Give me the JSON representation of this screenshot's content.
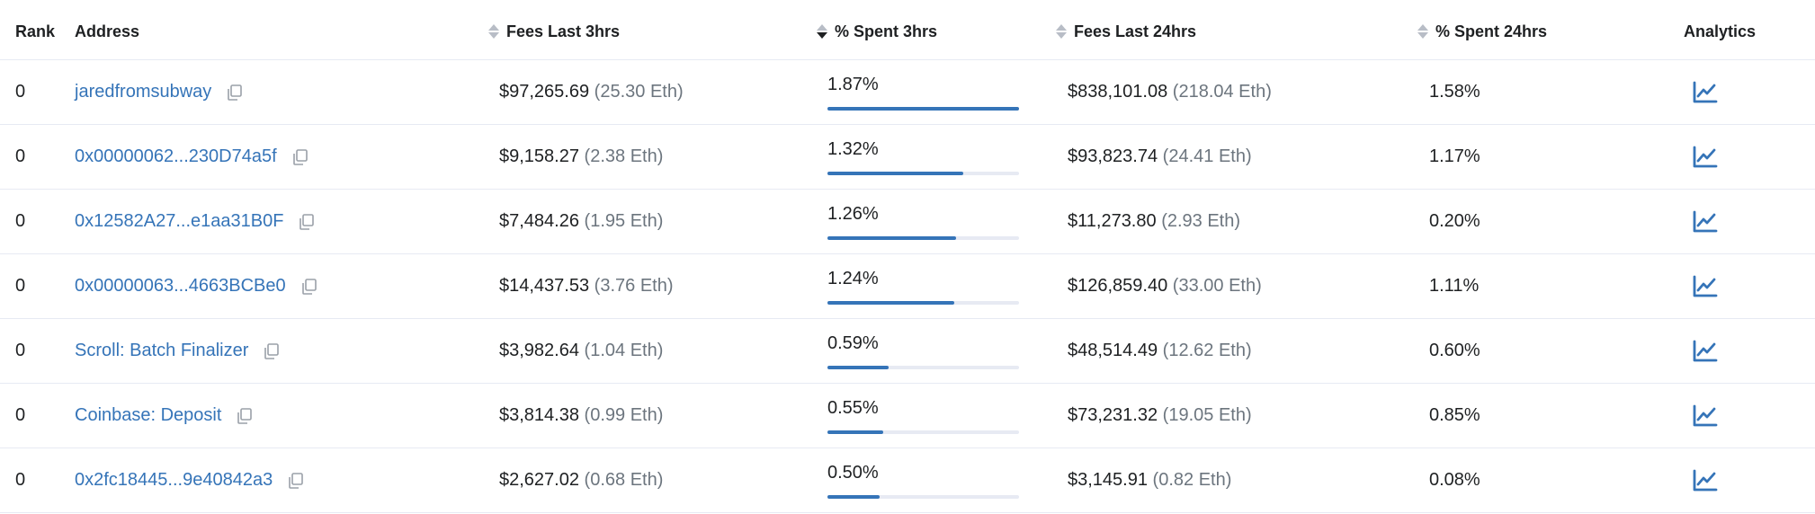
{
  "headers": {
    "rank": "Rank",
    "address": "Address",
    "fees3": "Fees Last 3hrs",
    "pct3": "% Spent 3hrs",
    "fees24": "Fees Last 24hrs",
    "pct24": "% Spent 24hrs",
    "analytics": "Analytics"
  },
  "colors": {
    "link": "#3574b8",
    "bar": "#3574b8",
    "bar_track": "#e7eaf3",
    "muted": "#6c757e"
  },
  "icons": {
    "copy": "copy-icon",
    "analytics": "line-chart-icon",
    "sort": "sort-icon"
  },
  "rows": [
    {
      "rank": "0",
      "address": "jaredfromsubway",
      "fees3_usd": "$97,265.69",
      "fees3_eth": "(25.30 Eth)",
      "pct3": "1.87%",
      "pct3_bar_fraction": 1.0,
      "fees24_usd": "$838,101.08",
      "fees24_eth": "(218.04 Eth)",
      "pct24": "1.58%"
    },
    {
      "rank": "0",
      "address": "0x00000062...230D74a5f",
      "fees3_usd": "$9,158.27",
      "fees3_eth": "(2.38 Eth)",
      "pct3": "1.32%",
      "pct3_bar_fraction": 0.71,
      "fees24_usd": "$93,823.74",
      "fees24_eth": "(24.41 Eth)",
      "pct24": "1.17%"
    },
    {
      "rank": "0",
      "address": "0x12582A27...e1aa31B0F",
      "fees3_usd": "$7,484.26",
      "fees3_eth": "(1.95 Eth)",
      "pct3": "1.26%",
      "pct3_bar_fraction": 0.67,
      "fees24_usd": "$11,273.80",
      "fees24_eth": "(2.93 Eth)",
      "pct24": "0.20%"
    },
    {
      "rank": "0",
      "address": "0x00000063...4663BCBe0",
      "fees3_usd": "$14,437.53",
      "fees3_eth": "(3.76 Eth)",
      "pct3": "1.24%",
      "pct3_bar_fraction": 0.66,
      "fees24_usd": "$126,859.40",
      "fees24_eth": "(33.00 Eth)",
      "pct24": "1.11%"
    },
    {
      "rank": "0",
      "address": "Scroll: Batch Finalizer",
      "fees3_usd": "$3,982.64",
      "fees3_eth": "(1.04 Eth)",
      "pct3": "0.59%",
      "pct3_bar_fraction": 0.32,
      "fees24_usd": "$48,514.49",
      "fees24_eth": "(12.62 Eth)",
      "pct24": "0.60%"
    },
    {
      "rank": "0",
      "address": "Coinbase: Deposit",
      "fees3_usd": "$3,814.38",
      "fees3_eth": "(0.99 Eth)",
      "pct3": "0.55%",
      "pct3_bar_fraction": 0.29,
      "fees24_usd": "$73,231.32",
      "fees24_eth": "(19.05 Eth)",
      "pct24": "0.85%"
    },
    {
      "rank": "0",
      "address": "0x2fc18445...9e40842a3",
      "fees3_usd": "$2,627.02",
      "fees3_eth": "(0.68 Eth)",
      "pct3": "0.50%",
      "pct3_bar_fraction": 0.27,
      "fees24_usd": "$3,145.91",
      "fees24_eth": "(0.82 Eth)",
      "pct24": "0.08%"
    }
  ]
}
